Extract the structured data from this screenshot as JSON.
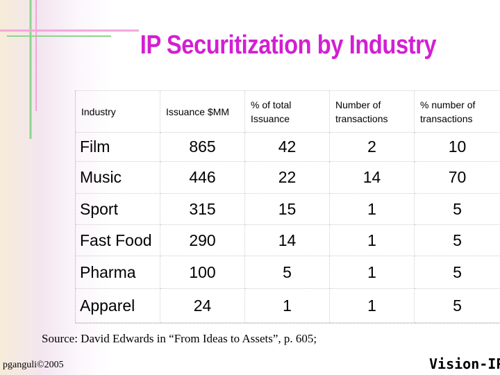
{
  "title": "IP Securitization by Industry",
  "table": {
    "header": [
      "Industry",
      "Issuance $MM",
      "% of total Issuance",
      "Number of transactions",
      "% number of transactions"
    ],
    "rows": [
      [
        "Film",
        865,
        42,
        2,
        10
      ],
      [
        "Music",
        446,
        22,
        14,
        70
      ],
      [
        "Sport",
        315,
        15,
        1,
        5
      ],
      [
        "Fast Food",
        290,
        14,
        1,
        5
      ],
      [
        "Pharma",
        100,
        5,
        1,
        5
      ],
      [
        "Apparel",
        24,
        1,
        1,
        5
      ]
    ]
  },
  "source": "Source: David Edwards in “From Ideas to Assets”, p. 605;",
  "footer": {
    "author": "pganguli©2005",
    "logo": "Vision-IPI"
  }
}
